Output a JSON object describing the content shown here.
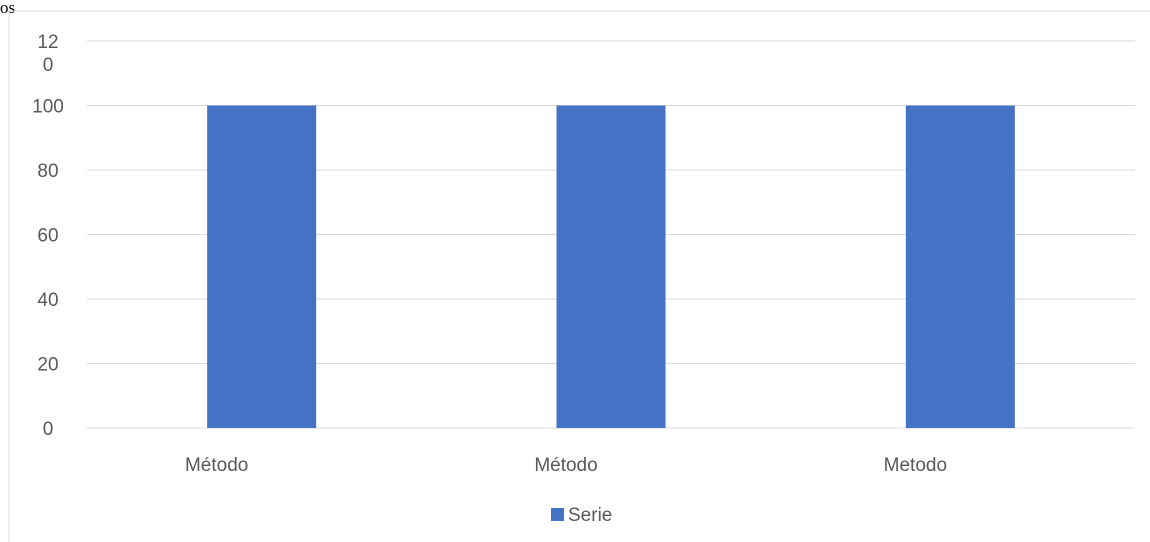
{
  "top_fragment": "os",
  "chart_data": {
    "type": "bar",
    "categories": [
      "Método",
      "Método",
      "Metodo"
    ],
    "series": [
      {
        "name": "Serie",
        "values": [
          100,
          100,
          100
        ],
        "color": "#4472c4"
      }
    ],
    "ylim": [
      0,
      120
    ],
    "yticks": [
      0,
      20,
      40,
      60,
      80,
      100,
      120
    ],
    "ytick_labels": [
      "0",
      "20",
      "40",
      "60",
      "80",
      "100",
      "12\n0"
    ],
    "grid": true,
    "legend": "bottom"
  }
}
